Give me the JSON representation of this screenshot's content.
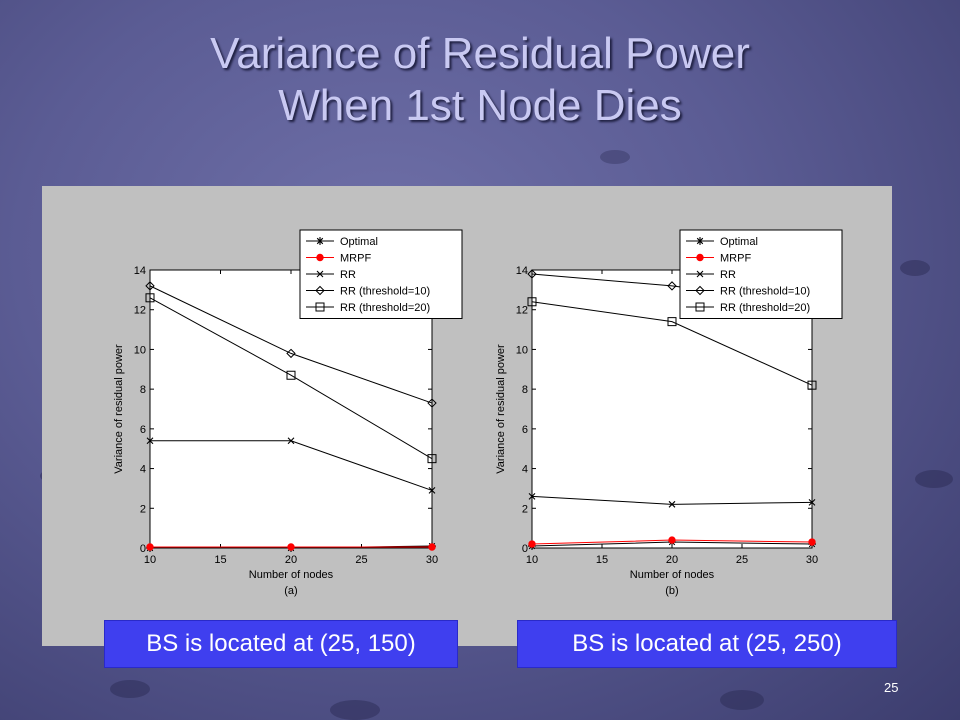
{
  "slide": {
    "title_line1": "Variance of Residual Power",
    "title_line2": "When 1st Node Dies",
    "page_number": "25"
  },
  "labels": {
    "left": "BS is located at (25, 150)",
    "right": "BS is located at (25, 250)"
  },
  "colors": {
    "accent": "#3f3fef",
    "mrpf": "#ff0000",
    "series_default": "#000000",
    "panel": "#c0c0c0"
  },
  "chart_data": [
    {
      "type": "line",
      "caption": "(a)",
      "xlabel": "Number of nodes",
      "ylabel": "Variance of residual power",
      "x": [
        10,
        20,
        30
      ],
      "xlim": [
        10,
        30
      ],
      "ylim": [
        0,
        14
      ],
      "xticks": [
        10,
        15,
        20,
        25,
        30
      ],
      "yticks": [
        0,
        2,
        4,
        6,
        8,
        10,
        12,
        14
      ],
      "grid": false,
      "legend_position": "top-right",
      "series": [
        {
          "name": "Optimal",
          "marker": "star",
          "color": "#000000",
          "values": [
            0.0,
            0.0,
            0.1
          ]
        },
        {
          "name": "MRPF",
          "marker": "dot",
          "color": "#ff0000",
          "values": [
            0.05,
            0.05,
            0.05
          ]
        },
        {
          "name": "RR",
          "marker": "x",
          "color": "#000000",
          "values": [
            5.4,
            5.4,
            2.9
          ]
        },
        {
          "name": "RR (threshold=10)",
          "marker": "diamond",
          "color": "#000000",
          "values": [
            13.2,
            9.8,
            7.3
          ]
        },
        {
          "name": "RR (threshold=20)",
          "marker": "square",
          "color": "#000000",
          "values": [
            12.6,
            8.7,
            4.5
          ]
        }
      ]
    },
    {
      "type": "line",
      "caption": "(b)",
      "xlabel": "Number of nodes",
      "ylabel": "Variance of residual power",
      "x": [
        10,
        20,
        30
      ],
      "xlim": [
        10,
        30
      ],
      "ylim": [
        0,
        14
      ],
      "xticks": [
        10,
        15,
        20,
        25,
        30
      ],
      "yticks": [
        0,
        2,
        4,
        6,
        8,
        10,
        12,
        14
      ],
      "grid": false,
      "legend_position": "top-right",
      "series": [
        {
          "name": "Optimal",
          "marker": "star",
          "color": "#000000",
          "values": [
            0.1,
            0.3,
            0.2
          ]
        },
        {
          "name": "MRPF",
          "marker": "dot",
          "color": "#ff0000",
          "values": [
            0.2,
            0.4,
            0.3
          ]
        },
        {
          "name": "RR",
          "marker": "x",
          "color": "#000000",
          "values": [
            2.6,
            2.2,
            2.3
          ]
        },
        {
          "name": "RR (threshold=10)",
          "marker": "diamond",
          "color": "#000000",
          "values": [
            13.8,
            13.2,
            12.3
          ]
        },
        {
          "name": "RR (threshold=20)",
          "marker": "square",
          "color": "#000000",
          "values": [
            12.4,
            11.4,
            8.2
          ]
        }
      ]
    }
  ]
}
